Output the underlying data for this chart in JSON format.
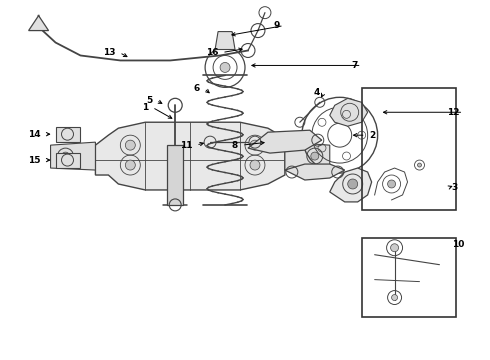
{
  "bg_color": "#ffffff",
  "line_color": "#444444",
  "label_color": "#000000",
  "lw": 0.8
}
